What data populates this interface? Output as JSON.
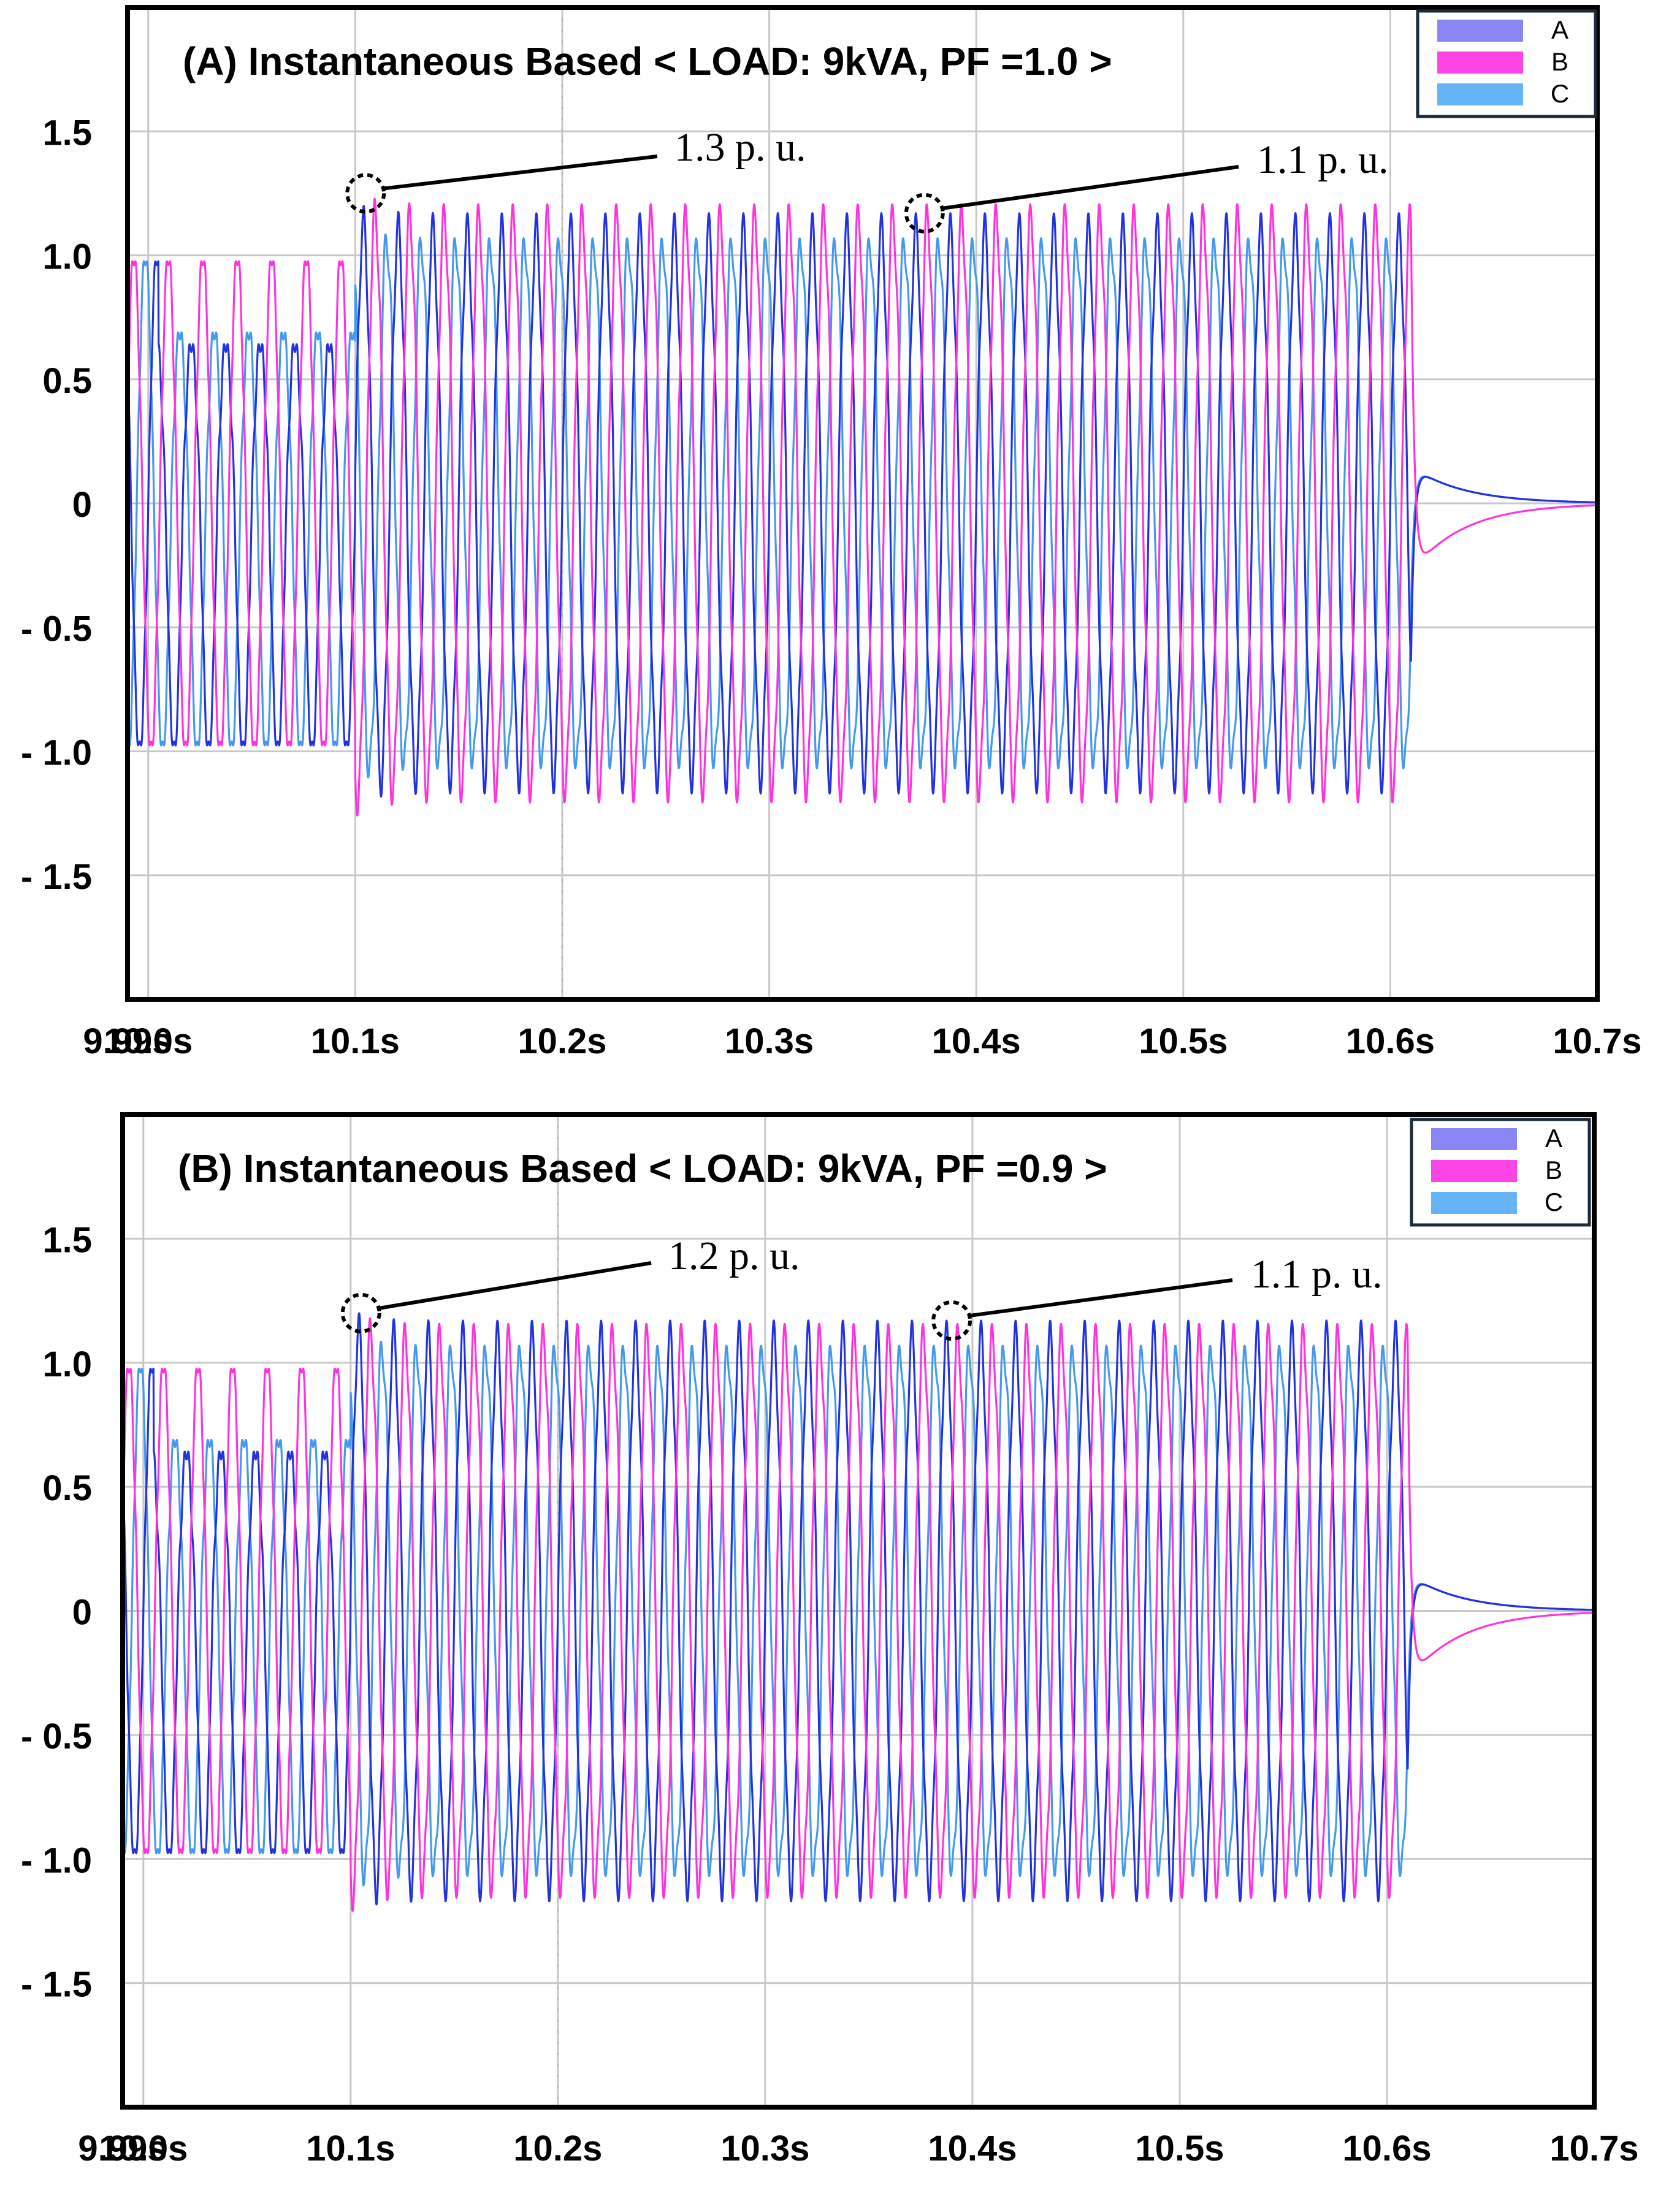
{
  "chart_data": [
    {
      "type": "line",
      "title": "(A) Instantaneous Based < LOAD: 9kVA, PF =1.0 >",
      "xlabel": "",
      "ylabel": "",
      "x_ticks": [
        "9.99s",
        "10.0s",
        "10.1s",
        "10.2s",
        "10.3s",
        "10.4s",
        "10.5s",
        "10.6s",
        "10.7s"
      ],
      "y_ticks": [
        "1.5",
        "1.0",
        "0.5",
        "0",
        "- 0.5",
        "- 1.0",
        "- 1.5"
      ],
      "xlim": [
        9.99,
        10.7
      ],
      "ylim": [
        -2.0,
        2.0
      ],
      "grid": true,
      "legend_position": "top-right",
      "series": [
        {
          "name": "A",
          "color": "#2233dd",
          "phase_deg": 0,
          "before_10_1_amplitude": 1.0,
          "after_10_1_amplitude": 1.1,
          "after_10_61": "decays to 0"
        },
        {
          "name": "B",
          "color": "#ff33dd",
          "phase_deg": -120,
          "before_10_1_amplitude": 1.0,
          "after_10_1_amplitude": 1.15,
          "after_10_61": "decays to 0"
        },
        {
          "name": "C",
          "color": "#4499ee",
          "phase_deg": 120,
          "before_10_1_amplitude": 1.0,
          "after_10_1_amplitude": 1.05,
          "after_10_61": "decays to 0"
        }
      ],
      "frequency_hz": 60,
      "load_step_s": 10.1,
      "trip_s": 10.61,
      "annotations": [
        {
          "text": "1.3 p. u.",
          "x": 10.105,
          "y": 1.25
        },
        {
          "text": "1.1 p. u.",
          "x": 10.375,
          "y": 1.17
        }
      ]
    },
    {
      "type": "line",
      "title": "(B) Instantaneous Based < LOAD: 9kVA, PF =0.9 >",
      "xlabel": "",
      "ylabel": "",
      "x_ticks": [
        "9.99s",
        "10.0s",
        "10.1s",
        "10.2s",
        "10.3s",
        "10.4s",
        "10.5s",
        "10.6s",
        "10.7s"
      ],
      "y_ticks": [
        "1.5",
        "1.0",
        "0.5",
        "0",
        "- 0.5",
        "- 1.0",
        "- 1.5"
      ],
      "xlim": [
        9.99,
        10.7
      ],
      "ylim": [
        -2.0,
        2.0
      ],
      "grid": true,
      "legend_position": "top-right",
      "series": [
        {
          "name": "A",
          "color": "#2233dd",
          "phase_deg": 0,
          "before_10_1_amplitude": 1.0,
          "after_10_1_amplitude": 1.1,
          "after_10_61": "decays to 0"
        },
        {
          "name": "B",
          "color": "#ff33dd",
          "phase_deg": -120,
          "before_10_1_amplitude": 1.0,
          "after_10_1_amplitude": 1.1,
          "after_10_61": "decays to 0"
        },
        {
          "name": "C",
          "color": "#4499ee",
          "phase_deg": 120,
          "before_10_1_amplitude": 1.0,
          "after_10_1_amplitude": 1.05,
          "after_10_61": "decays to 0"
        }
      ],
      "frequency_hz": 60,
      "load_step_s": 10.1,
      "trip_s": 10.61,
      "annotations": [
        {
          "text": "1.2 p. u.",
          "x": 10.105,
          "y": 1.2
        },
        {
          "text": "1.1 p. u.",
          "x": 10.39,
          "y": 1.17
        }
      ]
    }
  ]
}
